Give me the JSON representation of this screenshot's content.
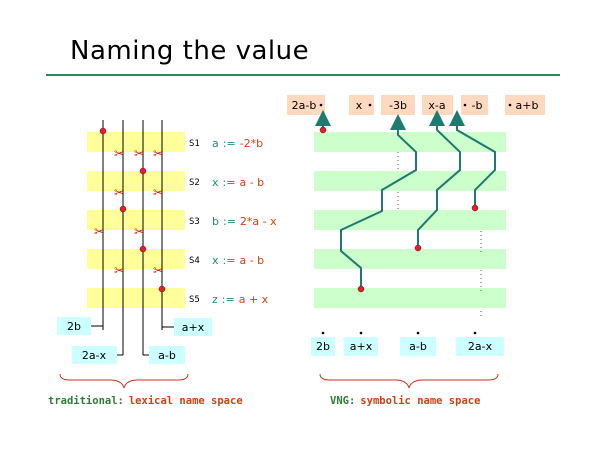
{
  "title": "Naming the value",
  "left": {
    "statements": [
      {
        "label": "S1",
        "var": "a",
        "expr": "-2*b"
      },
      {
        "label": "S2",
        "var": "x",
        "expr": "a - b"
      },
      {
        "label": "S3",
        "var": "b",
        "expr": "2*a - x"
      },
      {
        "label": "S4",
        "var": "x",
        "expr": "a - b"
      },
      {
        "label": "S5",
        "var": "z",
        "expr": "a + x"
      }
    ],
    "assign_op": ":=",
    "inputs": [
      "2b",
      "a+x",
      "2a-x",
      "a-b"
    ],
    "caption_prefix": "traditional:",
    "caption_main": "lexical name space"
  },
  "right": {
    "top_boxes": [
      "2a-b",
      "x",
      "-3b",
      "x-a",
      "-b",
      "a+b"
    ],
    "bottom_boxes": [
      "2b",
      "a+x",
      "a-b",
      "2a-x"
    ],
    "caption_prefix": "VNG:",
    "caption_main": "symbolic name space"
  },
  "colors": {
    "yellow_band": "#ffff99",
    "green_band": "#ccffcc",
    "box_cyan": "#ccffff",
    "box_peach": "#ffd8c0",
    "arrow_teal": "#1e7b70",
    "dot_red": "#e0202a",
    "stmt_teal": "#1e8c7a",
    "stmt_red": "#d04010",
    "caption_green": "#2e7d32",
    "caption_red": "#d04010",
    "rule_green": "#2e8a5e",
    "brace_red": "#cc3322"
  },
  "icons": [
    "scissors-icon",
    "red-dot-icon",
    "arrow-icon"
  ]
}
